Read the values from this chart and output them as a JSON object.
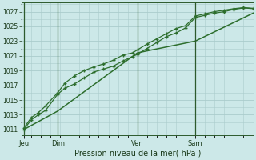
{
  "bg_color": "#cce8e8",
  "grid_color": "#aacccc",
  "line_color": "#2d6e2d",
  "marker_color": "#2d6e2d",
  "axis_label": "Pression niveau de la mer( hPa )",
  "yticks": [
    1011,
    1013,
    1015,
    1017,
    1019,
    1021,
    1023,
    1025,
    1027
  ],
  "ylim": [
    1010.2,
    1028.2
  ],
  "xlim": [
    0.0,
    48.0
  ],
  "xtick_positions": [
    0.5,
    7.5,
    24.0,
    36.0
  ],
  "xtick_labels": [
    "Jeu",
    "Dim",
    "Ven",
    "Sam"
  ],
  "vline_positions": [
    0.5,
    7.5,
    24.0,
    36.0
  ],
  "line1_x": [
    0.5,
    2.0,
    3.5,
    5.0,
    7.5,
    9.0,
    11.0,
    13.0,
    15.0,
    17.0,
    19.0,
    21.0,
    23.0,
    24.0,
    26.0,
    28.0,
    30.0,
    32.0,
    34.0,
    36.0,
    38.0,
    40.0,
    42.0,
    44.0,
    46.0,
    48.0
  ],
  "line1_y": [
    1011.0,
    1012.3,
    1013.0,
    1013.6,
    1015.8,
    1016.6,
    1017.2,
    1018.0,
    1018.8,
    1019.2,
    1019.6,
    1020.3,
    1020.9,
    1021.2,
    1022.0,
    1022.8,
    1023.6,
    1024.1,
    1024.8,
    1026.2,
    1026.5,
    1026.8,
    1027.0,
    1027.3,
    1027.5,
    1027.4
  ],
  "line2_x": [
    0.5,
    2.0,
    3.5,
    5.0,
    7.5,
    9.0,
    11.0,
    13.0,
    15.0,
    17.0,
    19.0,
    21.0,
    23.0,
    24.0,
    26.0,
    28.0,
    30.0,
    32.0,
    34.0,
    36.0,
    38.0,
    40.0,
    42.0,
    44.0,
    46.0,
    48.0
  ],
  "line2_y": [
    1011.2,
    1012.6,
    1013.3,
    1014.2,
    1016.0,
    1017.3,
    1018.3,
    1019.0,
    1019.5,
    1019.9,
    1020.4,
    1021.1,
    1021.4,
    1021.8,
    1022.6,
    1023.3,
    1024.0,
    1024.7,
    1025.1,
    1026.4,
    1026.7,
    1027.0,
    1027.2,
    1027.4,
    1027.55,
    1027.45
  ],
  "line3_x": [
    0.5,
    7.5,
    24.0,
    36.0,
    48.0
  ],
  "line3_y": [
    1011.0,
    1013.5,
    1021.4,
    1023.0,
    1026.8
  ]
}
